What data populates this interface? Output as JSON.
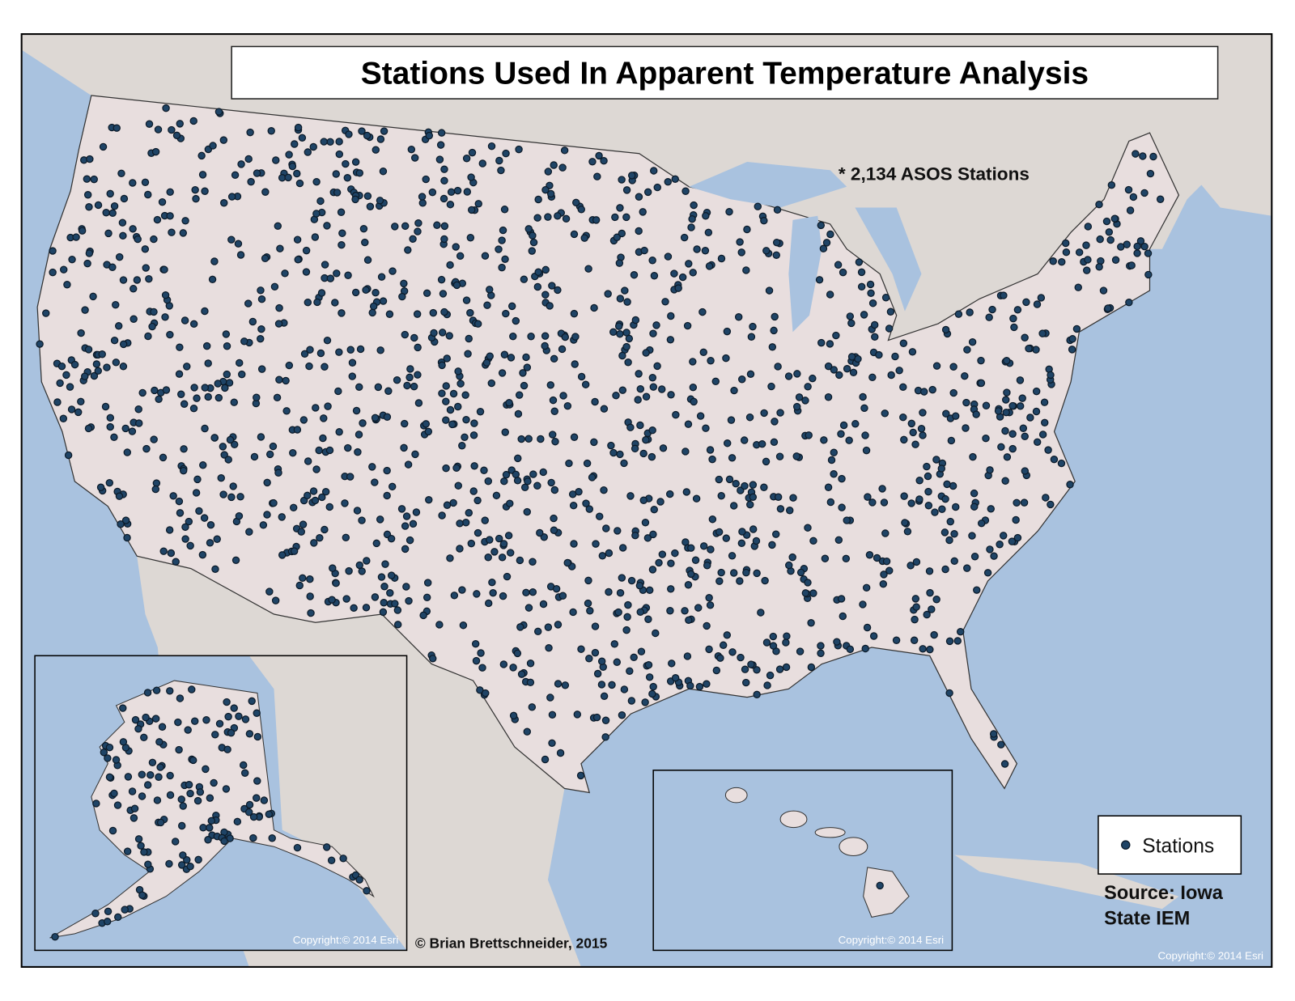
{
  "title": "Stations Used In Apparent Temperature Analysis",
  "annotation": "* 2,134 ASOS Stations",
  "legend": {
    "label": "Stations"
  },
  "source": {
    "line1": "Source: Iowa",
    "line2": "State IEM"
  },
  "credit": "© Brian Brettschneider, 2015",
  "copyrights": [
    "Copyright:© 2014 Esri",
    "Copyright:© 2014 Esri",
    "Copyright:© 2014 Esri"
  ]
}
